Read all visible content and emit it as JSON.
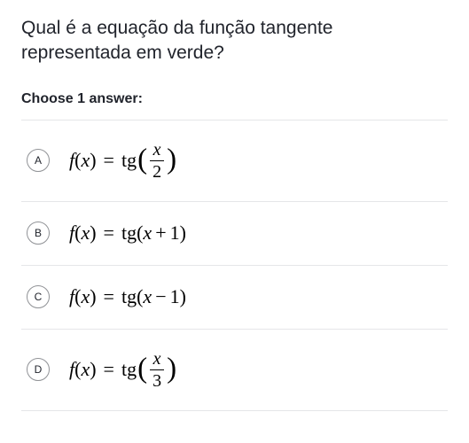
{
  "question": "Qual é a equação da função tangente representada em verde?",
  "choose_label": "Choose 1 answer:",
  "colors": {
    "text": "#21242c",
    "border": "#e5e6e8",
    "radio_border": "#909296",
    "background": "#ffffff",
    "formula": "#000000"
  },
  "typography": {
    "question_fontsize": 21,
    "choose_fontsize": 16,
    "formula_fontsize": 22,
    "radio_letter_fontsize": 12
  },
  "options": [
    {
      "letter": "A",
      "type": "fraction",
      "lhs_fn": "f",
      "lhs_var": "x",
      "rhs_fn": "tg",
      "numerator": "x",
      "denominator": "2"
    },
    {
      "letter": "B",
      "type": "simple",
      "lhs_fn": "f",
      "lhs_var": "x",
      "rhs_fn": "tg",
      "arg_var": "x",
      "arg_op": "+",
      "arg_const": "1"
    },
    {
      "letter": "C",
      "type": "simple",
      "lhs_fn": "f",
      "lhs_var": "x",
      "rhs_fn": "tg",
      "arg_var": "x",
      "arg_op": "−",
      "arg_const": "1"
    },
    {
      "letter": "D",
      "type": "fraction",
      "lhs_fn": "f",
      "lhs_var": "x",
      "rhs_fn": "tg",
      "numerator": "x",
      "denominator": "3"
    }
  ]
}
